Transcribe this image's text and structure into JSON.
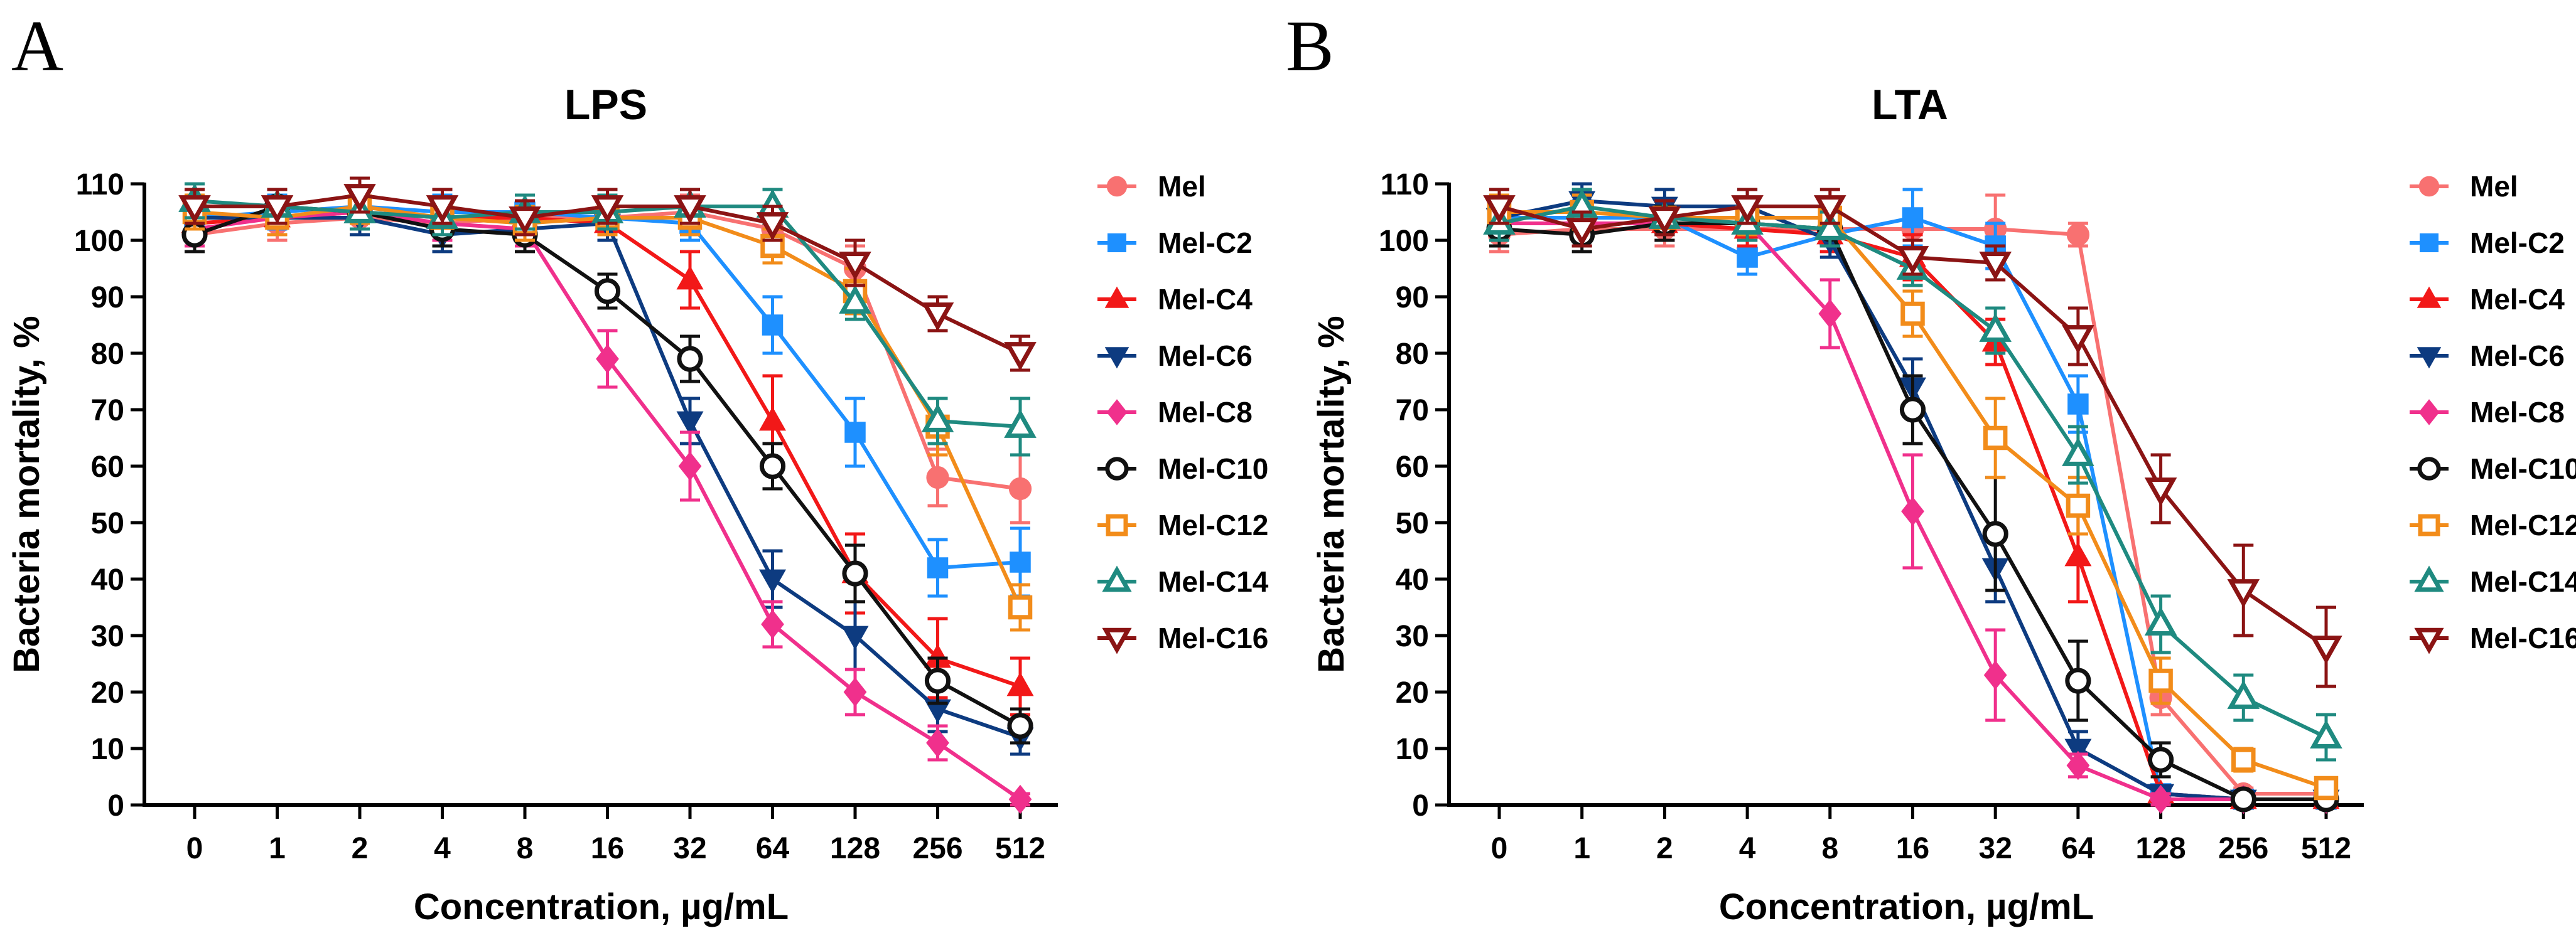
{
  "panels": [
    {
      "letter": "A",
      "chart_data": {
        "type": "line",
        "title": "LPS",
        "xlabel": "Concentration, µg/mL",
        "ylabel": "Bacteria mortality, %",
        "categories": [
          "0",
          "1",
          "2",
          "4",
          "8",
          "16",
          "32",
          "64",
          "128",
          "256",
          "512"
        ],
        "ylim": [
          0,
          110
        ],
        "yticks": [
          0,
          10,
          20,
          30,
          40,
          50,
          60,
          70,
          80,
          90,
          100,
          110
        ],
        "legend_position": "right",
        "series": [
          {
            "name": "Mel",
            "color": "#F87171",
            "marker": "circle",
            "values": [
              101,
              103,
              104,
              103,
              104,
              104,
              105,
              102,
              95,
              58,
              56
            ],
            "errors": [
              3,
              3,
              3,
              3,
              3,
              3,
              3,
              3,
              4,
              5,
              6
            ]
          },
          {
            "name": "Mel-C2",
            "color": "#1E90FF",
            "marker": "square",
            "values": [
              104,
              105,
              106,
              105,
              105,
              104,
              103,
              85,
              66,
              42,
              43
            ],
            "errors": [
              3,
              3,
              3,
              3,
              3,
              3,
              3,
              5,
              6,
              5,
              6
            ]
          },
          {
            "name": "Mel-C4",
            "color": "#F21818",
            "marker": "triangle-up",
            "values": [
              103,
              104,
              105,
              104,
              104,
              103,
              93,
              68,
              41,
              26,
              21
            ],
            "errors": [
              3,
              3,
              3,
              3,
              3,
              3,
              5,
              8,
              7,
              7,
              5
            ]
          },
          {
            "name": "Mel-C6",
            "color": "#0D3B80",
            "marker": "triangle-down",
            "values": [
              104,
              104,
              104,
              101,
              102,
              103,
              68,
              40,
              30,
              17,
              12
            ],
            "errors": [
              3,
              3,
              3,
              3,
              3,
              3,
              4,
              5,
              6,
              4,
              3
            ]
          },
          {
            "name": "Mel-C8",
            "color": "#F0308C",
            "marker": "diamond",
            "values": [
              102,
              104,
              105,
              103,
              102,
              79,
              60,
              32,
              20,
              11,
              1
            ],
            "errors": [
              3,
              3,
              3,
              3,
              3,
              5,
              6,
              4,
              4,
              3,
              1
            ]
          },
          {
            "name": "Mel-C10",
            "color": "#111111",
            "marker": "circle-open",
            "values": [
              101,
              106,
              105,
              102,
              101,
              91,
              79,
              60,
              41,
              22,
              14
            ],
            "errors": [
              3,
              3,
              3,
              3,
              3,
              3,
              4,
              4,
              5,
              4,
              3
            ]
          },
          {
            "name": "Mel-C12",
            "color": "#F28C1A",
            "marker": "square-open",
            "values": [
              105,
              104,
              106,
              104,
              103,
              104,
              104,
              99,
              91,
              67,
              35
            ],
            "errors": [
              3,
              3,
              3,
              3,
              3,
              3,
              3,
              3,
              4,
              5,
              4
            ]
          },
          {
            "name": "Mel-C14",
            "color": "#1F8A80",
            "marker": "triangle-up-open",
            "values": [
              107,
              106,
              105,
              104,
              105,
              105,
              106,
              106,
              89,
              68,
              67
            ],
            "errors": [
              3,
              3,
              3,
              3,
              3,
              3,
              3,
              3,
              3,
              4,
              5
            ]
          },
          {
            "name": "Mel-C16",
            "color": "#8B1414",
            "marker": "triangle-down-open",
            "values": [
              106,
              106,
              108,
              106,
              104,
              106,
              106,
              103,
              96,
              87,
              80
            ],
            "errors": [
              3,
              3,
              3,
              3,
              3,
              3,
              3,
              3,
              4,
              3,
              3
            ]
          }
        ]
      }
    },
    {
      "letter": "B",
      "chart_data": {
        "type": "line",
        "title": "LTA",
        "xlabel": "Concentration, µg/mL",
        "ylabel": "Bacteria mortality, %",
        "categories": [
          "0",
          "1",
          "2",
          "4",
          "8",
          "16",
          "32",
          "64",
          "128",
          "256",
          "512"
        ],
        "ylim": [
          0,
          110
        ],
        "yticks": [
          0,
          10,
          20,
          30,
          40,
          50,
          60,
          70,
          80,
          90,
          100,
          110
        ],
        "legend_position": "right",
        "series": [
          {
            "name": "Mel",
            "color": "#F87171",
            "marker": "circle",
            "values": [
              101,
              102,
              102,
              102,
              102,
              102,
              102,
              101,
              19,
              2,
              2
            ],
            "errors": [
              3,
              3,
              3,
              3,
              3,
              3,
              6,
              2,
              3,
              1,
              1
            ]
          },
          {
            "name": "Mel-C2",
            "color": "#1E90FF",
            "marker": "square",
            "values": [
              104,
              104,
              104,
              97,
              101,
              104,
              99,
              71,
              2,
              1,
              1
            ],
            "errors": [
              4,
              3,
              3,
              3,
              3,
              5,
              4,
              5,
              1,
              1,
              1
            ]
          },
          {
            "name": "Mel-C4",
            "color": "#F21818",
            "marker": "triangle-up",
            "values": [
              103,
              103,
              103,
              102,
              101,
              97,
              82,
              44,
              2,
              1,
              1
            ],
            "errors": [
              3,
              3,
              3,
              3,
              3,
              4,
              4,
              8,
              1,
              1,
              1
            ]
          },
          {
            "name": "Mel-C6",
            "color": "#0D3B80",
            "marker": "triangle-down",
            "values": [
              104,
              107,
              106,
              106,
              100,
              74,
              42,
              10,
              2,
              1,
              1
            ],
            "errors": [
              3,
              3,
              3,
              3,
              3,
              5,
              6,
              3,
              1,
              1,
              1
            ]
          },
          {
            "name": "Mel-C8",
            "color": "#F0308C",
            "marker": "diamond",
            "values": [
              103,
              103,
              103,
              103,
              87,
              52,
              23,
              7,
              1,
              1,
              1
            ],
            "errors": [
              3,
              3,
              3,
              3,
              6,
              10,
              8,
              2,
              1,
              1,
              1
            ]
          },
          {
            "name": "Mel-C10",
            "color": "#111111",
            "marker": "circle-open",
            "values": [
              102,
              101,
              103,
              103,
              102,
              70,
              48,
              22,
              8,
              1,
              1
            ],
            "errors": [
              3,
              3,
              3,
              3,
              3,
              6,
              10,
              7,
              3,
              1,
              1
            ]
          },
          {
            "name": "Mel-C12",
            "color": "#F28C1A",
            "marker": "square-open",
            "values": [
              105,
              105,
              104,
              104,
              104,
              87,
              65,
              53,
              22,
              8,
              3
            ],
            "errors": [
              3,
              3,
              3,
              3,
              3,
              4,
              7,
              5,
              4,
              2,
              1
            ]
          },
          {
            "name": "Mel-C14",
            "color": "#1F8A80",
            "marker": "triangle-up-open",
            "values": [
              103,
              106,
              104,
              103,
              102,
              95,
              84,
              62,
              32,
              19,
              12
            ],
            "errors": [
              3,
              3,
              3,
              3,
              3,
              3,
              4,
              5,
              5,
              4,
              4
            ]
          },
          {
            "name": "Mel-C16",
            "color": "#8B1414",
            "marker": "triangle-down-open",
            "values": [
              106,
              102,
              104,
              106,
              106,
              97,
              96,
              83,
              56,
              38,
              28
            ],
            "errors": [
              3,
              3,
              3,
              3,
              3,
              3,
              3,
              5,
              6,
              8,
              7
            ]
          }
        ]
      }
    }
  ]
}
